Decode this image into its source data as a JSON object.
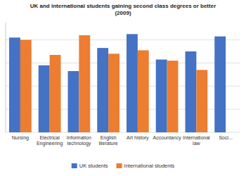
{
  "chart_data": {
    "type": "bar",
    "title": "UK and international students gaining second class degrees or better\n(2009)",
    "categories": [
      "Nursing",
      "Electrical\nEngineering",
      "Information\ntechnology",
      "English\nliterature",
      "Art history",
      "Accountancy",
      "International\nlaw",
      "Soci..."
    ],
    "series": [
      {
        "name": "UK students",
        "color": "#4472c4",
        "values": [
          82,
          58,
          53,
          73,
          85,
          63,
          70,
          83
        ]
      },
      {
        "name": "International students",
        "color": "#ed7d31",
        "values": [
          80,
          67,
          84,
          68,
          71,
          62,
          54,
          0
        ]
      }
    ],
    "ylim": [
      0,
      95
    ],
    "yticks": [
      0,
      20,
      40,
      60,
      80
    ],
    "grid": true,
    "legend": "bottom",
    "tick_labels": "x"
  }
}
